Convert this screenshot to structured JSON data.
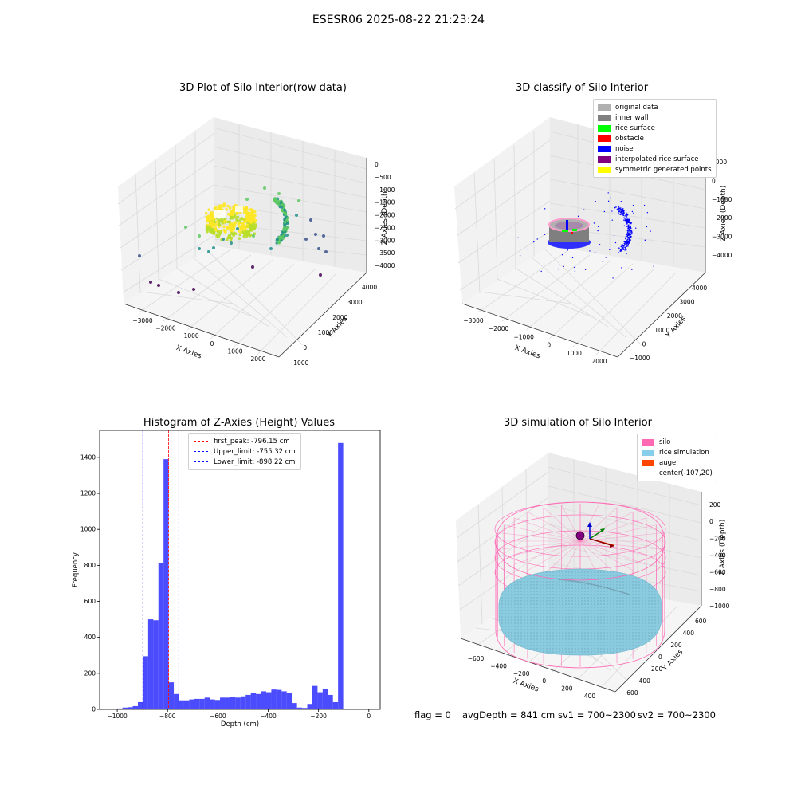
{
  "suptitle": "ESESR06 2025-08-22 21:23:24",
  "status": {
    "flag": "flag = 0",
    "avg_depth": "avgDepth = 841 cm",
    "sv1": "sv1 = 700~2300",
    "sv2": "sv2 = 700~2300"
  },
  "chart_data": [
    {
      "type": "scatter",
      "title": "3D Plot of Silo Interior(row data)",
      "xlabel": "X Axies",
      "ylabel": "Y Axies",
      "zlabel": "Z Axies (Depth)",
      "x_ticks": [
        "−3000",
        "−2000",
        "−1000",
        "0",
        "1000",
        "2000"
      ],
      "y_ticks": [
        "−1000",
        "0",
        "1000",
        "2000",
        "3000",
        "4000"
      ],
      "z_ticks": [
        "0",
        "−500",
        "−1000",
        "−1500",
        "−2000",
        "−2500",
        "−3000",
        "−3500",
        "−4000"
      ],
      "xlim": [
        -3500,
        2400
      ],
      "ylim": [
        -1000,
        4200
      ],
      "zlim": [
        -4200,
        200
      ],
      "colormap": [
        "#440154",
        "#3b528b",
        "#21918c",
        "#5ec962",
        "#fde725"
      ]
    },
    {
      "type": "scatter",
      "title": "3D classify of Silo Interior",
      "xlabel": "X Axies",
      "ylabel": "Y Axies",
      "zlabel": "Z Axies (Depth)",
      "x_ticks": [
        "−3000",
        "−2000",
        "−1000",
        "0",
        "1000",
        "2000"
      ],
      "y_ticks": [
        "−1000",
        "0",
        "1000",
        "2000",
        "3000",
        "4000"
      ],
      "z_ticks": [
        "1000",
        "0",
        "−1000",
        "−2000",
        "−3000",
        "−4000"
      ],
      "xlim": [
        -3500,
        2400
      ],
      "ylim": [
        -1000,
        4200
      ],
      "zlim": [
        -4500,
        1200
      ],
      "legend": [
        {
          "label": "original data",
          "color": "#b0b0b0"
        },
        {
          "label": "inner wall",
          "color": "#808080"
        },
        {
          "label": "rice surface",
          "color": "#00ff00"
        },
        {
          "label": "obstacle",
          "color": "#ff0000"
        },
        {
          "label": "noise",
          "color": "#0000ff"
        },
        {
          "label": "interpolated rice surface",
          "color": "#800080"
        },
        {
          "label": "symmetric generated points",
          "color": "#ffff00"
        }
      ]
    },
    {
      "type": "bar",
      "title": "Histogram of Z-Axies (Height) Values",
      "xlabel": "Depth (cm)",
      "ylabel": "Frequency",
      "xlim": [
        -1070,
        45
      ],
      "ylim": [
        0,
        1550
      ],
      "x_ticks": [
        -1000,
        -800,
        -600,
        -400,
        -200,
        0
      ],
      "x_tick_labels": [
        "−1000",
        "−800",
        "−600",
        "−400",
        "−200",
        "0"
      ],
      "y_ticks": [
        0,
        200,
        400,
        600,
        800,
        1000,
        1200,
        1400
      ],
      "bar_color": "#0000ff",
      "bin_width": 20.4,
      "bins_start": [
        -1020,
        -999.6,
        -979.2,
        -958.8,
        -938.4,
        -918,
        -897.6,
        -877.2,
        -856.8,
        -836.4,
        -816,
        -795.6,
        -775.2,
        -754.8,
        -734.4,
        -714,
        -693.6,
        -673.2,
        -652.8,
        -632.4,
        -612,
        -591.6,
        -571.2,
        -550.8,
        -530.4,
        -510,
        -489.6,
        -469.2,
        -448.8,
        -428.4,
        -408,
        -387.6,
        -367.2,
        -346.8,
        -326.4,
        -306,
        -285.6,
        -265.2,
        -244.8,
        -224.4,
        -204,
        -183.6,
        -163.2,
        -142.8,
        -122.4,
        -102,
        -81.6,
        -61.2,
        -40.8,
        -20.4
      ],
      "counts": [
        2,
        5,
        10,
        12,
        18,
        40,
        295,
        500,
        495,
        815,
        1390,
        150,
        85,
        50,
        50,
        55,
        58,
        58,
        65,
        55,
        52,
        65,
        65,
        70,
        65,
        72,
        80,
        90,
        85,
        100,
        95,
        110,
        108,
        100,
        90,
        35,
        10,
        8,
        30,
        130,
        95,
        115,
        80,
        40,
        1480,
        0,
        0,
        0,
        0,
        0
      ],
      "vlines": [
        {
          "label": "first_peak: -796.15 cm",
          "x": -796.15,
          "color": "#ff0000"
        },
        {
          "label": "Upper_limit: -755.32 cm",
          "x": -755.32,
          "color": "#0000ff"
        },
        {
          "label": "Lower_limit: -898.22 cm",
          "x": -898.22,
          "color": "#0000ff"
        }
      ]
    },
    {
      "type": "scatter",
      "title": "3D simulation of Silo Interior",
      "xlabel": "X Axies",
      "ylabel": "Y Axies",
      "zlabel": "Z Axies (Depth)",
      "x_ticks": [
        "−600",
        "−400",
        "−200",
        "0",
        "200",
        "400"
      ],
      "y_ticks": [
        "−600",
        "−400",
        "−200",
        "0",
        "200",
        "400",
        "600"
      ],
      "z_ticks": [
        "200",
        "0",
        "−200",
        "−400",
        "−600",
        "−800",
        "−1000"
      ],
      "xlim": [
        -750,
        550
      ],
      "ylim": [
        -700,
        700
      ],
      "zlim": [
        -1050,
        300
      ],
      "legend": [
        {
          "label": "silo",
          "color": "#ff69b4"
        },
        {
          "label": "rice simulation",
          "color": "#87ceeb"
        },
        {
          "label": "auger",
          "color": "#ff4500"
        },
        {
          "label": "center(-107,20)",
          "color": ""
        }
      ]
    }
  ]
}
